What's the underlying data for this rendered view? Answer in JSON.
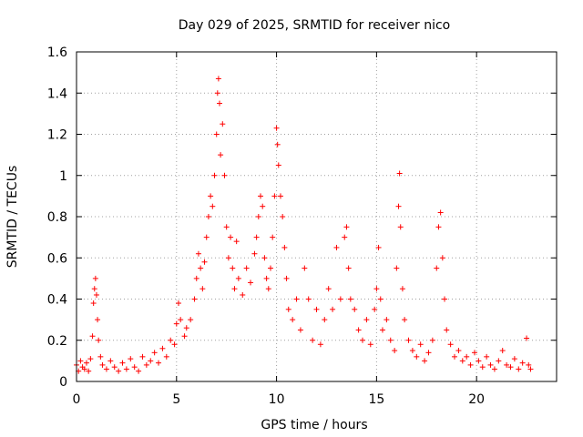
{
  "chart_data": {
    "type": "scatter",
    "title": "Day 029 of 2025, SRMTID for receiver nico",
    "xlabel": "GPS time / hours",
    "ylabel": "SRMTID / TECUs",
    "xlim": [
      0,
      24
    ],
    "ylim": [
      0,
      1.6
    ],
    "xticks": [
      0,
      5,
      10,
      15,
      20
    ],
    "xtick_labels": [
      "0",
      "5",
      "10",
      "15",
      "20"
    ],
    "yticks": [
      0,
      0.2,
      0.4,
      0.6,
      0.8,
      1.0,
      1.2,
      1.4,
      1.6
    ],
    "ytick_labels": [
      "0",
      "0.2",
      "0.4",
      "0.6",
      "0.8",
      "1",
      "1.2",
      "1.4",
      "1.6"
    ],
    "grid": true,
    "marker": "+",
    "series": [
      {
        "name": "SRMTID",
        "color": "#ff0000",
        "points": [
          [
            0.0,
            0.08
          ],
          [
            0.1,
            0.05
          ],
          [
            0.2,
            0.1
          ],
          [
            0.3,
            0.07
          ],
          [
            0.4,
            0.06
          ],
          [
            0.5,
            0.09
          ],
          [
            0.6,
            0.05
          ],
          [
            0.7,
            0.11
          ],
          [
            0.8,
            0.22
          ],
          [
            0.85,
            0.38
          ],
          [
            0.9,
            0.45
          ],
          [
            0.95,
            0.5
          ],
          [
            1.0,
            0.42
          ],
          [
            1.05,
            0.3
          ],
          [
            1.1,
            0.2
          ],
          [
            1.2,
            0.12
          ],
          [
            1.3,
            0.08
          ],
          [
            1.5,
            0.06
          ],
          [
            1.7,
            0.1
          ],
          [
            1.9,
            0.07
          ],
          [
            2.1,
            0.05
          ],
          [
            2.3,
            0.09
          ],
          [
            2.5,
            0.06
          ],
          [
            2.7,
            0.11
          ],
          [
            2.9,
            0.07
          ],
          [
            3.1,
            0.05
          ],
          [
            3.3,
            0.12
          ],
          [
            3.5,
            0.08
          ],
          [
            3.7,
            0.1
          ],
          [
            3.9,
            0.14
          ],
          [
            4.1,
            0.09
          ],
          [
            4.3,
            0.16
          ],
          [
            4.5,
            0.12
          ],
          [
            4.7,
            0.2
          ],
          [
            4.9,
            0.18
          ],
          [
            5.0,
            0.28
          ],
          [
            5.1,
            0.38
          ],
          [
            5.2,
            0.3
          ],
          [
            5.4,
            0.22
          ],
          [
            5.5,
            0.26
          ],
          [
            5.7,
            0.3
          ],
          [
            5.9,
            0.4
          ],
          [
            6.0,
            0.5
          ],
          [
            6.1,
            0.62
          ],
          [
            6.2,
            0.55
          ],
          [
            6.3,
            0.45
          ],
          [
            6.4,
            0.58
          ],
          [
            6.5,
            0.7
          ],
          [
            6.6,
            0.8
          ],
          [
            6.7,
            0.9
          ],
          [
            6.8,
            0.85
          ],
          [
            6.9,
            1.0
          ],
          [
            7.0,
            1.2
          ],
          [
            7.05,
            1.4
          ],
          [
            7.1,
            1.47
          ],
          [
            7.15,
            1.35
          ],
          [
            7.2,
            1.1
          ],
          [
            7.3,
            1.25
          ],
          [
            7.4,
            1.0
          ],
          [
            7.5,
            0.75
          ],
          [
            7.6,
            0.6
          ],
          [
            7.7,
            0.7
          ],
          [
            7.8,
            0.55
          ],
          [
            7.9,
            0.45
          ],
          [
            8.0,
            0.68
          ],
          [
            8.1,
            0.5
          ],
          [
            8.3,
            0.42
          ],
          [
            8.5,
            0.55
          ],
          [
            8.7,
            0.48
          ],
          [
            8.9,
            0.62
          ],
          [
            9.0,
            0.7
          ],
          [
            9.1,
            0.8
          ],
          [
            9.2,
            0.9
          ],
          [
            9.3,
            0.85
          ],
          [
            9.4,
            0.6
          ],
          [
            9.5,
            0.5
          ],
          [
            9.6,
            0.45
          ],
          [
            9.7,
            0.55
          ],
          [
            9.8,
            0.7
          ],
          [
            9.9,
            0.9
          ],
          [
            10.0,
            1.23
          ],
          [
            10.05,
            1.15
          ],
          [
            10.1,
            1.05
          ],
          [
            10.2,
            0.9
          ],
          [
            10.3,
            0.8
          ],
          [
            10.4,
            0.65
          ],
          [
            10.5,
            0.5
          ],
          [
            10.6,
            0.35
          ],
          [
            10.8,
            0.3
          ],
          [
            11.0,
            0.4
          ],
          [
            11.2,
            0.25
          ],
          [
            11.4,
            0.55
          ],
          [
            11.6,
            0.4
          ],
          [
            11.8,
            0.2
          ],
          [
            12.0,
            0.35
          ],
          [
            12.2,
            0.18
          ],
          [
            12.4,
            0.3
          ],
          [
            12.6,
            0.45
          ],
          [
            12.8,
            0.35
          ],
          [
            13.0,
            0.65
          ],
          [
            13.2,
            0.4
          ],
          [
            13.4,
            0.7
          ],
          [
            13.5,
            0.75
          ],
          [
            13.6,
            0.55
          ],
          [
            13.7,
            0.4
          ],
          [
            13.9,
            0.35
          ],
          [
            14.1,
            0.25
          ],
          [
            14.3,
            0.2
          ],
          [
            14.5,
            0.3
          ],
          [
            14.7,
            0.18
          ],
          [
            14.9,
            0.35
          ],
          [
            15.0,
            0.45
          ],
          [
            15.1,
            0.65
          ],
          [
            15.2,
            0.4
          ],
          [
            15.3,
            0.25
          ],
          [
            15.5,
            0.3
          ],
          [
            15.7,
            0.2
          ],
          [
            15.9,
            0.15
          ],
          [
            16.0,
            0.55
          ],
          [
            16.1,
            0.85
          ],
          [
            16.15,
            1.01
          ],
          [
            16.2,
            0.75
          ],
          [
            16.3,
            0.45
          ],
          [
            16.4,
            0.3
          ],
          [
            16.6,
            0.2
          ],
          [
            16.8,
            0.15
          ],
          [
            17.0,
            0.12
          ],
          [
            17.2,
            0.18
          ],
          [
            17.4,
            0.1
          ],
          [
            17.6,
            0.14
          ],
          [
            17.8,
            0.2
          ],
          [
            18.0,
            0.55
          ],
          [
            18.1,
            0.75
          ],
          [
            18.2,
            0.82
          ],
          [
            18.3,
            0.6
          ],
          [
            18.4,
            0.4
          ],
          [
            18.5,
            0.25
          ],
          [
            18.7,
            0.18
          ],
          [
            18.9,
            0.12
          ],
          [
            19.1,
            0.15
          ],
          [
            19.3,
            0.1
          ],
          [
            19.5,
            0.12
          ],
          [
            19.7,
            0.08
          ],
          [
            19.9,
            0.14
          ],
          [
            20.1,
            0.1
          ],
          [
            20.3,
            0.07
          ],
          [
            20.5,
            0.12
          ],
          [
            20.7,
            0.08
          ],
          [
            20.9,
            0.06
          ],
          [
            21.1,
            0.1
          ],
          [
            21.3,
            0.15
          ],
          [
            21.5,
            0.08
          ],
          [
            21.7,
            0.07
          ],
          [
            21.9,
            0.11
          ],
          [
            22.1,
            0.06
          ],
          [
            22.3,
            0.09
          ],
          [
            22.5,
            0.21
          ],
          [
            22.6,
            0.08
          ],
          [
            22.7,
            0.06
          ]
        ]
      }
    ]
  }
}
